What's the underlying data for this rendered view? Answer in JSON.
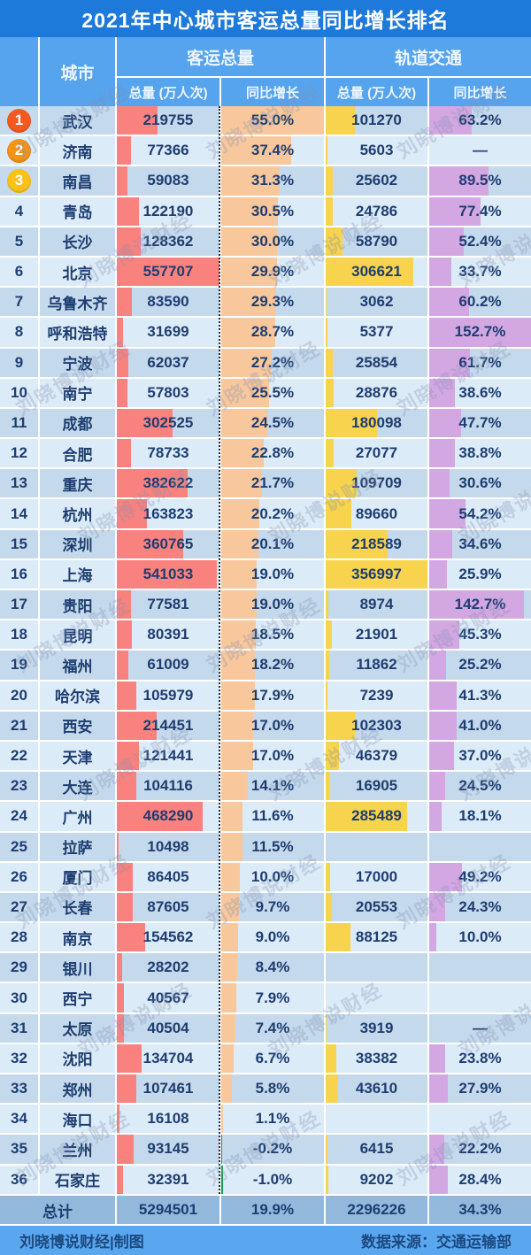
{
  "title": "2021年中心城市客运总量同比增长排名",
  "watermark": "刘晓博说财经",
  "header": {
    "city": "城市",
    "group_passenger": "客运总量",
    "group_rail": "轨道交通",
    "sub_total": "总量 (万人次)",
    "sub_growth": "同比增长"
  },
  "badges": {
    "1": "#f45a1f",
    "2": "#f79312",
    "3": "#fac119"
  },
  "colors": {
    "title_bg": "#1d79da",
    "header_bg": "#56a3ee",
    "row_dark": "#c5d9ec",
    "row_light": "#dcebf8",
    "total_row_bg": "#92b9dc",
    "footer_bg": "#5aa7f0",
    "text_navy": "#1e3e71",
    "bar_passenger_total": "#f9827e",
    "bar_passenger_growth": "#f9c79c",
    "bar_rail_total": "#f8d34e",
    "bar_rail_growth": "#d3a7e2",
    "bar_negative": "#0fa24d"
  },
  "chart_data": {
    "type": "table",
    "title": "2021年中心城市客运总量同比增长排名",
    "columns": [
      "排名",
      "城市",
      "客运总量-总量(万人次)",
      "客运总量-同比增长(%)",
      "轨道交通-总量(万人次)",
      "轨道交通-同比增长(%)"
    ],
    "max_values": {
      "passenger_total": 557707,
      "passenger_growth": 55.0,
      "rail_total": 356997,
      "rail_growth": 152.7
    },
    "rows": [
      {
        "rank": 1,
        "city": "武汉",
        "passenger_total": 219755,
        "passenger_growth": 55.0,
        "rail_total": 101270,
        "rail_growth": 63.2
      },
      {
        "rank": 2,
        "city": "济南",
        "passenger_total": 77366,
        "passenger_growth": 37.4,
        "rail_total": 5603,
        "rail_growth": "—"
      },
      {
        "rank": 3,
        "city": "南昌",
        "passenger_total": 59083,
        "passenger_growth": 31.3,
        "rail_total": 25602,
        "rail_growth": 89.5
      },
      {
        "rank": 4,
        "city": "青岛",
        "passenger_total": 122190,
        "passenger_growth": 30.5,
        "rail_total": 24786,
        "rail_growth": 77.4
      },
      {
        "rank": 5,
        "city": "长沙",
        "passenger_total": 128362,
        "passenger_growth": 30.0,
        "rail_total": 58790,
        "rail_growth": 52.4
      },
      {
        "rank": 6,
        "city": "北京",
        "passenger_total": 557707,
        "passenger_growth": 29.9,
        "rail_total": 306621,
        "rail_growth": 33.7
      },
      {
        "rank": 7,
        "city": "乌鲁木齐",
        "passenger_total": 83590,
        "passenger_growth": 29.3,
        "rail_total": 3062,
        "rail_growth": 60.2
      },
      {
        "rank": 8,
        "city": "呼和浩特",
        "passenger_total": 31699,
        "passenger_growth": 28.7,
        "rail_total": 5377,
        "rail_growth": 152.7
      },
      {
        "rank": 9,
        "city": "宁波",
        "passenger_total": 62037,
        "passenger_growth": 27.2,
        "rail_total": 25854,
        "rail_growth": 61.7
      },
      {
        "rank": 10,
        "city": "南宁",
        "passenger_total": 57803,
        "passenger_growth": 25.5,
        "rail_total": 28876,
        "rail_growth": 38.6
      },
      {
        "rank": 11,
        "city": "成都",
        "passenger_total": 302525,
        "passenger_growth": 24.5,
        "rail_total": 180098,
        "rail_growth": 47.7
      },
      {
        "rank": 12,
        "city": "合肥",
        "passenger_total": 78733,
        "passenger_growth": 22.8,
        "rail_total": 27077,
        "rail_growth": 38.8
      },
      {
        "rank": 13,
        "city": "重庆",
        "passenger_total": 382622,
        "passenger_growth": 21.7,
        "rail_total": 109709,
        "rail_growth": 30.6
      },
      {
        "rank": 14,
        "city": "杭州",
        "passenger_total": 163823,
        "passenger_growth": 20.2,
        "rail_total": 89660,
        "rail_growth": 54.2
      },
      {
        "rank": 15,
        "city": "深圳",
        "passenger_total": 360765,
        "passenger_growth": 20.1,
        "rail_total": 218589,
        "rail_growth": 34.6
      },
      {
        "rank": 16,
        "city": "上海",
        "passenger_total": 541033,
        "passenger_growth": 19.0,
        "rail_total": 356997,
        "rail_growth": 25.9
      },
      {
        "rank": 17,
        "city": "贵阳",
        "passenger_total": 77581,
        "passenger_growth": 19.0,
        "rail_total": 8974,
        "rail_growth": 142.7
      },
      {
        "rank": 18,
        "city": "昆明",
        "passenger_total": 80391,
        "passenger_growth": 18.5,
        "rail_total": 21901,
        "rail_growth": 45.3
      },
      {
        "rank": 19,
        "city": "福州",
        "passenger_total": 61009,
        "passenger_growth": 18.2,
        "rail_total": 11862,
        "rail_growth": 25.2
      },
      {
        "rank": 20,
        "city": "哈尔滨",
        "passenger_total": 105979,
        "passenger_growth": 17.9,
        "rail_total": 7239,
        "rail_growth": 41.3
      },
      {
        "rank": 21,
        "city": "西安",
        "passenger_total": 214451,
        "passenger_growth": 17.0,
        "rail_total": 102303,
        "rail_growth": 41.0
      },
      {
        "rank": 22,
        "city": "天津",
        "passenger_total": 121441,
        "passenger_growth": 17.0,
        "rail_total": 46379,
        "rail_growth": 37.0
      },
      {
        "rank": 23,
        "city": "大连",
        "passenger_total": 104116,
        "passenger_growth": 14.1,
        "rail_total": 16905,
        "rail_growth": 24.5
      },
      {
        "rank": 24,
        "city": "广州",
        "passenger_total": 468290,
        "passenger_growth": 11.6,
        "rail_total": 285489,
        "rail_growth": 18.1
      },
      {
        "rank": 25,
        "city": "拉萨",
        "passenger_total": 10498,
        "passenger_growth": 11.5,
        "rail_total": null,
        "rail_growth": null
      },
      {
        "rank": 26,
        "city": "厦门",
        "passenger_total": 86405,
        "passenger_growth": 10.0,
        "rail_total": 17000,
        "rail_growth": 49.2
      },
      {
        "rank": 27,
        "city": "长春",
        "passenger_total": 87605,
        "passenger_growth": 9.7,
        "rail_total": 20553,
        "rail_growth": 24.3
      },
      {
        "rank": 28,
        "city": "南京",
        "passenger_total": 154562,
        "passenger_growth": 9.0,
        "rail_total": 88125,
        "rail_growth": 10.0
      },
      {
        "rank": 29,
        "city": "银川",
        "passenger_total": 28202,
        "passenger_growth": 8.4,
        "rail_total": null,
        "rail_growth": null
      },
      {
        "rank": 30,
        "city": "西宁",
        "passenger_total": 40567,
        "passenger_growth": 7.9,
        "rail_total": null,
        "rail_growth": null
      },
      {
        "rank": 31,
        "city": "太原",
        "passenger_total": 40504,
        "passenger_growth": 7.4,
        "rail_total": 3919,
        "rail_growth": "—"
      },
      {
        "rank": 32,
        "city": "沈阳",
        "passenger_total": 134704,
        "passenger_growth": 6.7,
        "rail_total": 38382,
        "rail_growth": 23.8
      },
      {
        "rank": 33,
        "city": "郑州",
        "passenger_total": 107461,
        "passenger_growth": 5.8,
        "rail_total": 43610,
        "rail_growth": 27.9
      },
      {
        "rank": 34,
        "city": "海口",
        "passenger_total": 16108,
        "passenger_growth": 1.1,
        "rail_total": null,
        "rail_growth": null
      },
      {
        "rank": 35,
        "city": "兰州",
        "passenger_total": 93145,
        "passenger_growth": -0.2,
        "rail_total": 6415,
        "rail_growth": 22.2
      },
      {
        "rank": 36,
        "city": "石家庄",
        "passenger_total": 32391,
        "passenger_growth": -1.0,
        "rail_total": 9202,
        "rail_growth": 28.4
      }
    ],
    "totals": {
      "label": "总计",
      "passenger_total": "5294501",
      "passenger_growth": "19.9%",
      "rail_total": "2296226",
      "rail_growth": "34.3%"
    }
  },
  "footer": {
    "left": "刘晓博说财经|制图",
    "right": "数据来源：交通运输部"
  }
}
